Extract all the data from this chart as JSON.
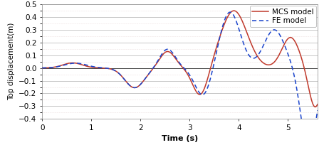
{
  "title": "",
  "xlabel": "Time (s)",
  "ylabel": "Top displacement(m)",
  "xlim": [
    0,
    5.6
  ],
  "ylim": [
    -0.4,
    0.5
  ],
  "yticks": [
    -0.4,
    -0.3,
    -0.2,
    -0.1,
    0.0,
    0.1,
    0.2,
    0.3,
    0.4,
    0.5
  ],
  "xticks": [
    0,
    1,
    2,
    3,
    4,
    5
  ],
  "mcs_color": "#c0392b",
  "fe_color": "#1a44cc",
  "background_color": "#ffffff",
  "grid_major_color": "#b0b0b0",
  "grid_minor_color": "#ddc8c8",
  "legend_labels": [
    "MCS model",
    "FE model"
  ],
  "xlabel_fontsize": 8,
  "ylabel_fontsize": 7.5,
  "tick_fontsize": 7.5,
  "legend_fontsize": 7.5
}
